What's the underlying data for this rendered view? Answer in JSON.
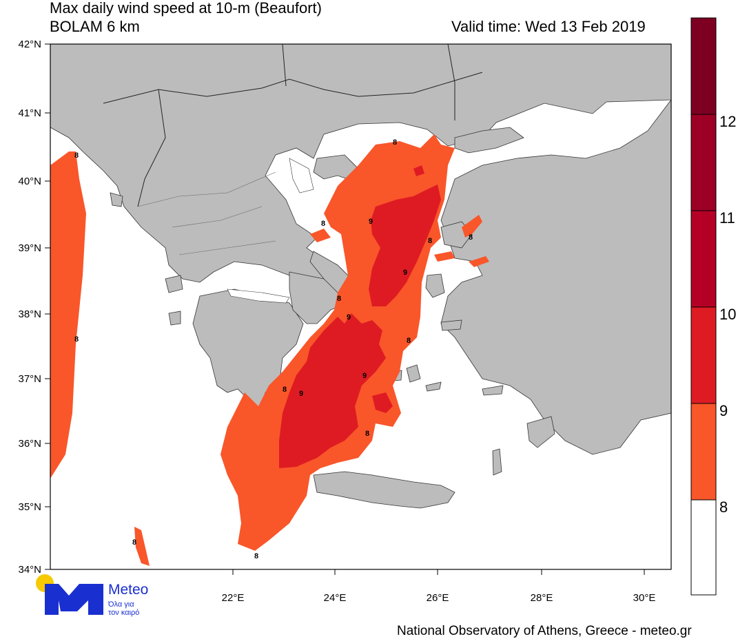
{
  "title": {
    "line1": "Max daily wind speed at 10-m (Beaufort)",
    "line2": "BOLAM 6 km",
    "valid_time": "Valid time: Wed 13 Feb 2019"
  },
  "map": {
    "lat_labels": [
      "42°N",
      "41°N",
      "40°N",
      "39°N",
      "38°N",
      "37°N",
      "36°N",
      "35°N",
      "34°N"
    ],
    "lon_labels": [
      "22°E",
      "24°E",
      "26°E",
      "28°E",
      "30°E"
    ],
    "land_color": "#bcbcbc",
    "sea_color": "#ffffff",
    "contour_labels": [
      "8",
      "8",
      "8",
      "8",
      "8",
      "8",
      "8",
      "8",
      "8",
      "8",
      "8",
      "8",
      "9",
      "9",
      "9",
      "9",
      "9"
    ]
  },
  "colorbar": {
    "labels": [
      "12",
      "11",
      "10",
      "9",
      "8"
    ],
    "colors": [
      "#ffffff",
      "#f9562a",
      "#de1b23",
      "#b50026",
      "#9c0025",
      "#7d0022"
    ]
  },
  "logo": {
    "name": "Meteo",
    "sub1": "Όλα για",
    "sub2": "τον καιρό"
  },
  "footer": "National Observatory of Athens, Greece - meteo.gr"
}
